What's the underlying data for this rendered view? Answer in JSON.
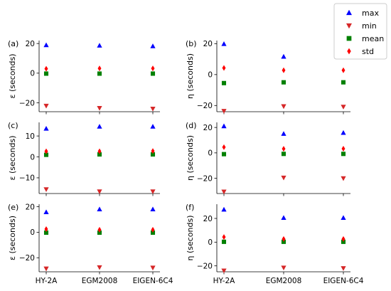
{
  "legend": {
    "placement": "top-right",
    "entries": [
      {
        "label": "max",
        "color": "#0000ff",
        "marker": "triangle-up"
      },
      {
        "label": "min",
        "color": "#d62728",
        "marker": "triangle-down"
      },
      {
        "label": "mean",
        "color": "#008000",
        "marker": "square"
      },
      {
        "label": "std",
        "color": "#ff0000",
        "marker": "diamond"
      }
    ]
  },
  "chart_data": [
    {
      "type": "scatter",
      "panel": "(a)",
      "ylabel": "ε (seconds)",
      "categories": [
        "HY-2A",
        "EGM2008",
        "EIGEN-6C4"
      ],
      "ylim": [
        -26,
        22
      ],
      "yticks": [
        -20,
        0,
        20
      ],
      "show_xticklabels": false,
      "series": [
        {
          "name": "max",
          "values": [
            18.9,
            18.6,
            18.2
          ]
        },
        {
          "name": "min",
          "values": [
            -22.0,
            -23.5,
            -24.0
          ]
        },
        {
          "name": "mean",
          "values": [
            -0.3,
            -0.3,
            -0.3
          ]
        },
        {
          "name": "std",
          "values": [
            3.0,
            3.2,
            3.2
          ]
        }
      ]
    },
    {
      "type": "scatter",
      "panel": "(b)",
      "ylabel": "η (seconds)",
      "categories": [
        "HY-2A",
        "EGM2008",
        "EIGEN-6C4"
      ],
      "ylim": [
        -24,
        22
      ],
      "yticks": [
        -20,
        0,
        20
      ],
      "show_xticklabels": false,
      "series": [
        {
          "name": "max",
          "values": [
            19.8,
            11.6,
            11.5
          ]
        },
        {
          "name": "min",
          "values": [
            -23.5,
            -20.5,
            -20.8
          ]
        },
        {
          "name": "mean",
          "values": [
            -5.5,
            -5.0,
            -5.0
          ]
        },
        {
          "name": "std",
          "values": [
            4.3,
            2.8,
            2.8
          ]
        }
      ]
    },
    {
      "type": "scatter",
      "panel": "(c)",
      "ylabel": "ε (seconds)",
      "categories": [
        "HY-2A",
        "EGM2008",
        "EIGEN-6C4"
      ],
      "ylim": [
        -17.5,
        16.5
      ],
      "yticks": [
        -10,
        0,
        10
      ],
      "show_xticklabels": false,
      "series": [
        {
          "name": "max",
          "values": [
            13.5,
            14.5,
            14.5
          ]
        },
        {
          "name": "min",
          "values": [
            -15.5,
            -16.5,
            -16.5
          ]
        },
        {
          "name": "mean",
          "values": [
            1.0,
            1.2,
            1.2
          ]
        },
        {
          "name": "std",
          "values": [
            2.7,
            2.7,
            2.8
          ]
        }
      ]
    },
    {
      "type": "scatter",
      "panel": "(d)",
      "ylabel": "η (seconds)",
      "categories": [
        "HY-2A",
        "EGM2008",
        "EIGEN-6C4"
      ],
      "ylim": [
        -32,
        24
      ],
      "yticks": [
        -20,
        0,
        20
      ],
      "show_xticklabels": false,
      "series": [
        {
          "name": "max",
          "values": [
            21.0,
            15.0,
            15.8
          ]
        },
        {
          "name": "min",
          "values": [
            -30.5,
            -19.5,
            -20.0
          ]
        },
        {
          "name": "mean",
          "values": [
            -1.0,
            -0.8,
            -0.8
          ]
        },
        {
          "name": "std",
          "values": [
            4.5,
            3.2,
            3.3
          ]
        }
      ]
    },
    {
      "type": "scatter",
      "panel": "(e)",
      "ylabel": "ε (seconds)",
      "categories": [
        "HY-2A",
        "EGM2008",
        "EIGEN-6C4"
      ],
      "ylim": [
        -31,
        22
      ],
      "yticks": [
        -20,
        0,
        20
      ],
      "show_xticklabels": true,
      "series": [
        {
          "name": "max",
          "values": [
            15.8,
            18.0,
            18.0
          ]
        },
        {
          "name": "min",
          "values": [
            -28.5,
            -27.5,
            -27.8
          ]
        },
        {
          "name": "mean",
          "values": [
            -0.3,
            -0.3,
            -0.3
          ]
        },
        {
          "name": "std",
          "values": [
            2.5,
            2.0,
            2.0
          ]
        }
      ]
    },
    {
      "type": "scatter",
      "panel": "(f)",
      "ylabel": "η (seconds)",
      "categories": [
        "HY-2A",
        "EGM2008",
        "EIGEN-6C4"
      ],
      "ylim": [
        -25,
        32
      ],
      "yticks": [
        -20,
        0,
        20
      ],
      "show_xticklabels": true,
      "series": [
        {
          "name": "max",
          "values": [
            27.5,
            20.5,
            20.5
          ]
        },
        {
          "name": "min",
          "values": [
            -24.0,
            -21.5,
            -22.0
          ]
        },
        {
          "name": "mean",
          "values": [
            0.3,
            0.3,
            0.3
          ]
        },
        {
          "name": "std",
          "values": [
            4.3,
            2.7,
            2.7
          ]
        }
      ]
    }
  ]
}
